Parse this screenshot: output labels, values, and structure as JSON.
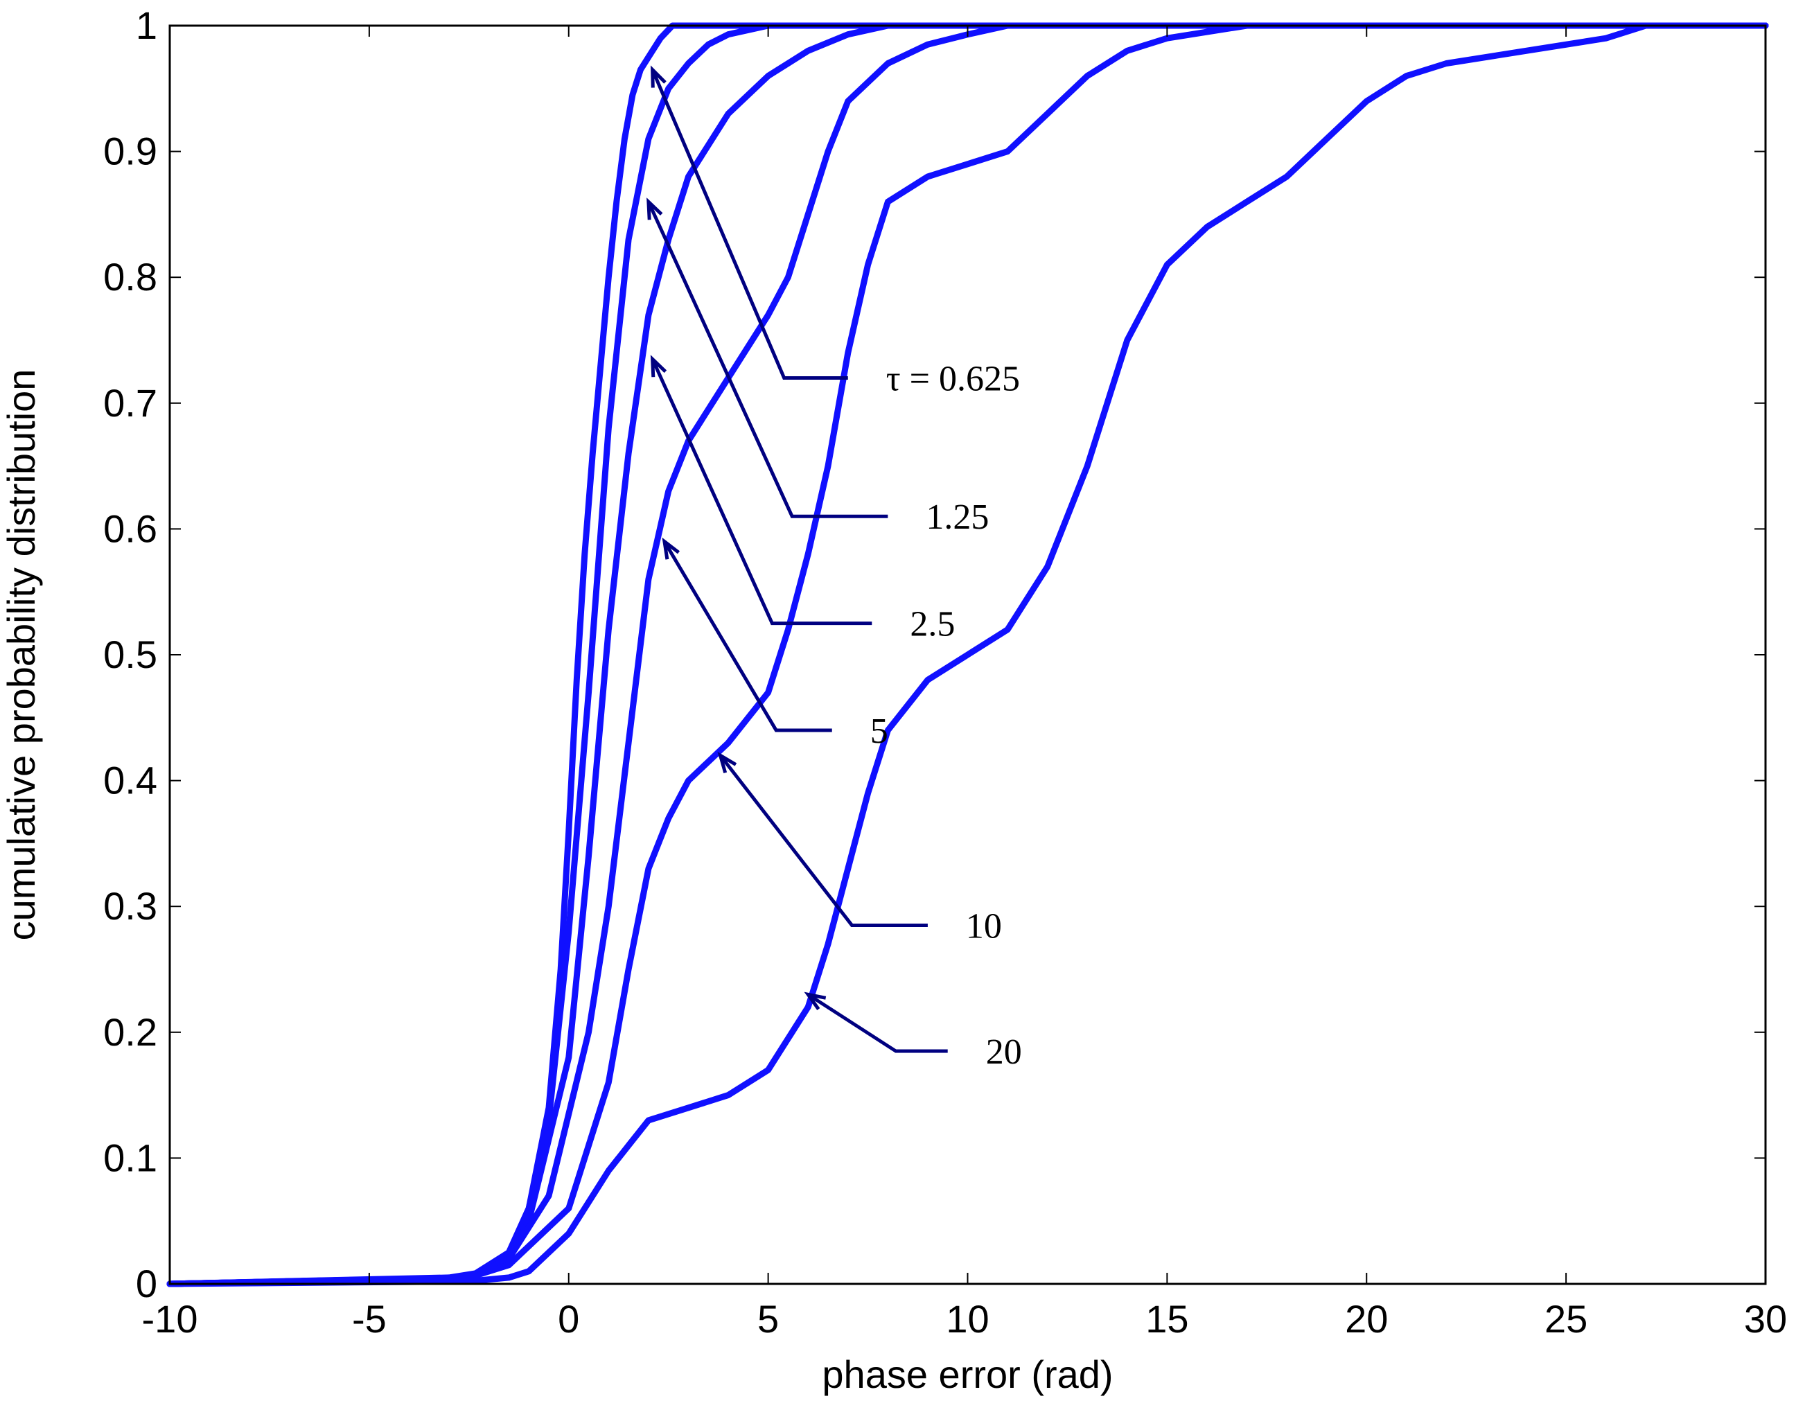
{
  "chart_data": {
    "type": "line",
    "title": "",
    "xlabel": "phase error (rad)",
    "ylabel": "cumulative probability distribution",
    "xlim": [
      -10,
      30
    ],
    "ylim": [
      0,
      1
    ],
    "xticks": [
      -10,
      -5,
      0,
      5,
      10,
      15,
      20,
      25,
      30
    ],
    "yticks": [
      0,
      0.1,
      0.2,
      0.3,
      0.4,
      0.5,
      0.6,
      0.7,
      0.8,
      0.9,
      1
    ],
    "xtick_labels": [
      "-10",
      "-5",
      "0",
      "5",
      "10",
      "15",
      "20",
      "25",
      "30"
    ],
    "ytick_labels": [
      "0",
      "0.1",
      "0.2",
      "0.3",
      "0.4",
      "0.5",
      "0.6",
      "0.7",
      "0.8",
      "0.9",
      "1"
    ],
    "grid": false,
    "series": [
      {
        "name": "τ = 0.625",
        "x": [
          -10,
          -3,
          -2,
          -1.5,
          -1,
          -0.5,
          -0.2,
          0,
          0.2,
          0.4,
          0.6,
          0.8,
          1.0,
          1.2,
          1.4,
          1.6,
          1.8,
          2.0,
          2.3,
          2.6,
          3.0,
          30
        ],
        "y": [
          0,
          0.005,
          0.01,
          0.025,
          0.06,
          0.14,
          0.25,
          0.36,
          0.48,
          0.58,
          0.66,
          0.73,
          0.8,
          0.86,
          0.91,
          0.945,
          0.965,
          0.975,
          0.99,
          1.0,
          1.0,
          1.0
        ]
      },
      {
        "name": "1.25",
        "x": [
          -10,
          -2.5,
          -1.5,
          -1,
          -0.5,
          0,
          0.5,
          1.0,
          1.5,
          2.0,
          2.5,
          3.0,
          3.5,
          4.0,
          5.0,
          6.0,
          30
        ],
        "y": [
          0,
          0.005,
          0.025,
          0.06,
          0.13,
          0.28,
          0.47,
          0.68,
          0.83,
          0.91,
          0.95,
          0.97,
          0.985,
          0.993,
          1.0,
          1.0,
          1.0
        ]
      },
      {
        "name": "2.5",
        "x": [
          -10,
          -2.5,
          -1.5,
          -1,
          0,
          0.5,
          1.0,
          1.5,
          2.0,
          2.5,
          3.0,
          4.0,
          5.0,
          6.0,
          7.0,
          8.0,
          30
        ],
        "y": [
          0,
          0.005,
          0.02,
          0.05,
          0.18,
          0.34,
          0.52,
          0.66,
          0.77,
          0.83,
          0.88,
          0.93,
          0.96,
          0.98,
          0.993,
          1.0,
          1.0
        ]
      },
      {
        "name": "5",
        "x": [
          -10,
          -2.5,
          -1.5,
          -0.5,
          0.5,
          1.0,
          1.5,
          2.0,
          2.5,
          3.0,
          4.0,
          5.0,
          5.5,
          6.0,
          6.5,
          7.0,
          8.0,
          9.0,
          10.0,
          11.0,
          30
        ],
        "y": [
          0,
          0.005,
          0.02,
          0.07,
          0.2,
          0.3,
          0.43,
          0.56,
          0.63,
          0.67,
          0.72,
          0.77,
          0.8,
          0.85,
          0.9,
          0.94,
          0.97,
          0.985,
          0.993,
          1.0,
          1.0
        ]
      },
      {
        "name": "10",
        "x": [
          -10,
          -2.5,
          -1.5,
          0,
          1.0,
          1.5,
          2.0,
          2.5,
          3.0,
          4.0,
          5.0,
          5.5,
          6.0,
          6.5,
          7.0,
          7.5,
          8.0,
          9.0,
          10.0,
          11.0,
          12.0,
          13.0,
          14.0,
          15.0,
          16.0,
          17.0,
          30
        ],
        "y": [
          0,
          0.005,
          0.015,
          0.06,
          0.16,
          0.25,
          0.33,
          0.37,
          0.4,
          0.43,
          0.47,
          0.52,
          0.58,
          0.65,
          0.74,
          0.81,
          0.86,
          0.88,
          0.89,
          0.9,
          0.93,
          0.96,
          0.98,
          0.99,
          0.995,
          1.0,
          1.0
        ]
      },
      {
        "name": "20",
        "x": [
          -10,
          -2.5,
          -1.5,
          -1,
          0,
          1.0,
          1.5,
          2.0,
          3.0,
          4.0,
          5.0,
          6.0,
          6.5,
          7.0,
          7.5,
          8.0,
          9.0,
          10.0,
          11.0,
          12.0,
          13.0,
          14.0,
          15.0,
          16.0,
          17.0,
          18.0,
          19.0,
          20.0,
          21.0,
          22.0,
          24.0,
          26.0,
          27.0,
          30
        ],
        "y": [
          0,
          0.002,
          0.005,
          0.01,
          0.04,
          0.09,
          0.11,
          0.13,
          0.14,
          0.15,
          0.17,
          0.22,
          0.27,
          0.33,
          0.39,
          0.44,
          0.48,
          0.5,
          0.52,
          0.57,
          0.65,
          0.75,
          0.81,
          0.84,
          0.86,
          0.88,
          0.91,
          0.94,
          0.96,
          0.97,
          0.98,
          0.99,
          1.0,
          1.0
        ]
      }
    ],
    "annotations": [
      {
        "text": "τ = 0.625",
        "series": "τ = 0.625",
        "target": [
          2.1,
          0.965
        ],
        "elbow": [
          5.4,
          0.72
        ],
        "line_end_x": 7.0
      },
      {
        "text": "1.25",
        "series": "1.25",
        "target": [
          2.0,
          0.86
        ],
        "elbow": [
          5.6,
          0.61
        ],
        "line_end_x": 8.0
      },
      {
        "text": "2.5",
        "series": "2.5",
        "target": [
          2.1,
          0.735
        ],
        "elbow": [
          5.1,
          0.525
        ],
        "line_end_x": 7.6
      },
      {
        "text": "5",
        "series": "5",
        "target": [
          2.4,
          0.59
        ],
        "elbow": [
          5.2,
          0.44
        ],
        "line_end_x": 6.6
      },
      {
        "text": "10",
        "series": "10",
        "target": [
          3.8,
          0.42
        ],
        "elbow": [
          7.1,
          0.285
        ],
        "line_end_x": 9.0
      },
      {
        "text": "20",
        "series": "20",
        "target": [
          6.0,
          0.23
        ],
        "elbow": [
          8.2,
          0.185
        ],
        "line_end_x": 9.5
      }
    ]
  }
}
